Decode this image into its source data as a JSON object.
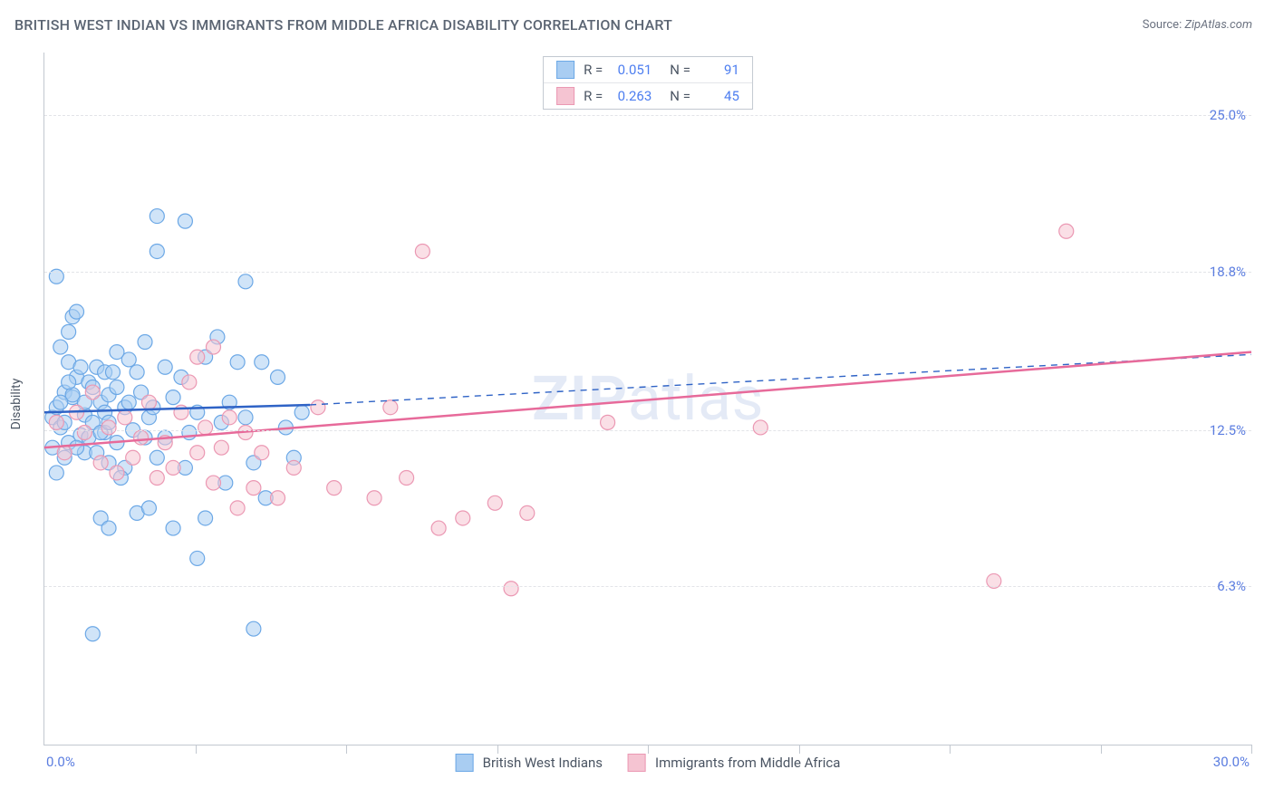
{
  "title": "BRITISH WEST INDIAN VS IMMIGRANTS FROM MIDDLE AFRICA DISABILITY CORRELATION CHART",
  "source_label": "Source:",
  "source_value": "ZipAtlas.com",
  "yaxis_title": "Disability",
  "watermark": "ZIPatlas",
  "chart": {
    "type": "scatter",
    "background_color": "#ffffff",
    "grid_color": "#e2e4e8",
    "axis_color": "#c2c8d0",
    "text_color": "#5a6472",
    "value_color": "#5b7de0",
    "xlim": [
      0,
      30
    ],
    "ylim": [
      0,
      27.5
    ],
    "x_ticks": [
      3.75,
      7.5,
      11.25,
      15,
      18.75,
      22.5,
      26.25,
      30
    ],
    "x_labels": {
      "0": "0.0%",
      "30": "30.0%"
    },
    "y_ticks": [
      {
        "v": 6.3,
        "label": "6.3%"
      },
      {
        "v": 12.5,
        "label": "12.5%"
      },
      {
        "v": 18.8,
        "label": "18.8%"
      },
      {
        "v": 25.0,
        "label": "25.0%"
      }
    ],
    "marker_radius": 8,
    "marker_opacity": 0.55,
    "series": [
      {
        "name": "British West Indians",
        "fill": "#a9cdf2",
        "stroke": "#6ca8e6",
        "line_color": "#2f63c6",
        "line_width": 2.5,
        "dash_color": "#2f63c6",
        "reg_line": {
          "x1": 0,
          "y1": 13.2,
          "x2": 6.6,
          "y2": 13.5,
          "dash_x2": 30,
          "dash_y2": 15.5
        },
        "points": [
          [
            0.2,
            13.0
          ],
          [
            0.3,
            13.4
          ],
          [
            0.4,
            12.6
          ],
          [
            0.5,
            14.0
          ],
          [
            0.6,
            12.0
          ],
          [
            0.7,
            13.8
          ],
          [
            0.8,
            14.6
          ],
          [
            0.5,
            11.4
          ],
          [
            0.6,
            15.2
          ],
          [
            0.9,
            12.3
          ],
          [
            1.0,
            13.1
          ],
          [
            1.1,
            14.4
          ],
          [
            1.2,
            12.8
          ],
          [
            1.0,
            11.6
          ],
          [
            0.3,
            18.6
          ],
          [
            0.7,
            17.0
          ],
          [
            1.3,
            15.0
          ],
          [
            1.4,
            13.6
          ],
          [
            1.5,
            12.4
          ],
          [
            1.5,
            14.8
          ],
          [
            1.6,
            11.2
          ],
          [
            1.6,
            13.9
          ],
          [
            1.8,
            14.2
          ],
          [
            1.8,
            12.0
          ],
          [
            2.0,
            13.4
          ],
          [
            2.0,
            11.0
          ],
          [
            2.1,
            15.3
          ],
          [
            2.2,
            12.5
          ],
          [
            2.3,
            9.2
          ],
          [
            2.4,
            14.0
          ],
          [
            2.5,
            16.0
          ],
          [
            2.6,
            13.0
          ],
          [
            2.8,
            11.4
          ],
          [
            2.8,
            19.6
          ],
          [
            3.0,
            12.2
          ],
          [
            3.0,
            15.0
          ],
          [
            3.2,
            13.8
          ],
          [
            3.4,
            14.6
          ],
          [
            3.5,
            11.0
          ],
          [
            3.5,
            20.8
          ],
          [
            3.8,
            7.4
          ],
          [
            3.8,
            13.2
          ],
          [
            4.0,
            15.4
          ],
          [
            4.0,
            9.0
          ],
          [
            4.3,
            16.2
          ],
          [
            4.4,
            12.8
          ],
          [
            4.5,
            10.4
          ],
          [
            4.8,
            15.2
          ],
          [
            5.0,
            18.4
          ],
          [
            5.0,
            13.0
          ],
          [
            5.2,
            4.6
          ],
          [
            5.2,
            11.2
          ],
          [
            5.5,
            9.8
          ],
          [
            5.8,
            14.6
          ],
          [
            6.0,
            12.6
          ],
          [
            6.2,
            11.4
          ],
          [
            1.2,
            4.4
          ],
          [
            1.4,
            9.0
          ],
          [
            1.6,
            8.6
          ],
          [
            1.8,
            15.6
          ],
          [
            0.4,
            15.8
          ],
          [
            0.6,
            16.4
          ],
          [
            0.8,
            17.2
          ],
          [
            2.8,
            21.0
          ],
          [
            2.6,
            9.4
          ],
          [
            3.2,
            8.6
          ],
          [
            3.6,
            12.4
          ],
          [
            4.6,
            13.6
          ],
          [
            5.4,
            15.2
          ],
          [
            6.4,
            13.2
          ],
          [
            0.2,
            11.8
          ],
          [
            0.3,
            10.8
          ],
          [
            0.5,
            12.8
          ],
          [
            0.7,
            13.9
          ],
          [
            0.9,
            15.0
          ],
          [
            1.1,
            12.2
          ],
          [
            1.3,
            11.6
          ],
          [
            1.5,
            13.2
          ],
          [
            1.7,
            14.8
          ],
          [
            1.9,
            10.6
          ],
          [
            2.1,
            13.6
          ],
          [
            2.3,
            14.8
          ],
          [
            2.5,
            12.2
          ],
          [
            2.7,
            13.4
          ],
          [
            0.4,
            13.6
          ],
          [
            0.6,
            14.4
          ],
          [
            0.8,
            11.8
          ],
          [
            1.0,
            13.6
          ],
          [
            1.2,
            14.2
          ],
          [
            1.4,
            12.4
          ],
          [
            1.6,
            12.8
          ]
        ]
      },
      {
        "name": "Immigrants from Middle Africa",
        "fill": "#f5c4d2",
        "stroke": "#eb98b3",
        "line_color": "#e76a9a",
        "line_width": 2.5,
        "reg_line": {
          "x1": 0,
          "y1": 11.8,
          "x2": 30,
          "y2": 15.6
        },
        "points": [
          [
            0.3,
            12.8
          ],
          [
            0.5,
            11.6
          ],
          [
            0.8,
            13.2
          ],
          [
            1.0,
            12.4
          ],
          [
            1.2,
            14.0
          ],
          [
            1.4,
            11.2
          ],
          [
            1.6,
            12.6
          ],
          [
            1.8,
            10.8
          ],
          [
            2.0,
            13.0
          ],
          [
            2.2,
            11.4
          ],
          [
            2.4,
            12.2
          ],
          [
            2.6,
            13.6
          ],
          [
            2.8,
            10.6
          ],
          [
            3.0,
            12.0
          ],
          [
            3.2,
            11.0
          ],
          [
            3.4,
            13.2
          ],
          [
            3.6,
            14.4
          ],
          [
            3.8,
            11.6
          ],
          [
            4.0,
            12.6
          ],
          [
            4.2,
            10.4
          ],
          [
            4.4,
            11.8
          ],
          [
            4.6,
            13.0
          ],
          [
            4.8,
            9.4
          ],
          [
            5.0,
            12.4
          ],
          [
            5.2,
            10.2
          ],
          [
            5.4,
            11.6
          ],
          [
            5.8,
            9.8
          ],
          [
            6.2,
            11.0
          ],
          [
            6.8,
            13.4
          ],
          [
            7.2,
            10.2
          ],
          [
            8.2,
            9.8
          ],
          [
            8.6,
            13.4
          ],
          [
            9.0,
            10.6
          ],
          [
            9.4,
            19.6
          ],
          [
            9.8,
            8.6
          ],
          [
            10.4,
            9.0
          ],
          [
            11.2,
            9.6
          ],
          [
            11.6,
            6.2
          ],
          [
            12.0,
            9.2
          ],
          [
            14.0,
            12.8
          ],
          [
            17.8,
            12.6
          ],
          [
            4.2,
            15.8
          ],
          [
            3.8,
            15.4
          ],
          [
            23.6,
            6.5
          ],
          [
            25.4,
            20.4
          ]
        ]
      }
    ],
    "stats": [
      {
        "swatch_fill": "#a9cdf2",
        "swatch_stroke": "#6ca8e6",
        "r_label": "R =",
        "r": "0.051",
        "n_label": "N =",
        "n": "91"
      },
      {
        "swatch_fill": "#f5c4d2",
        "swatch_stroke": "#eb98b3",
        "r_label": "R =",
        "r": "0.263",
        "n_label": "N =",
        "n": "45"
      }
    ],
    "legend": [
      {
        "swatch_fill": "#a9cdf2",
        "swatch_stroke": "#6ca8e6",
        "label": "British West Indians"
      },
      {
        "swatch_fill": "#f5c4d2",
        "swatch_stroke": "#eb98b3",
        "label": "Immigrants from Middle Africa"
      }
    ]
  }
}
